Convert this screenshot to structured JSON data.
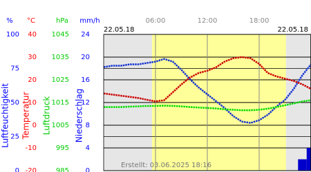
{
  "chart_data": {
    "type": "line",
    "date_left": "22.05.18",
    "date_right": "22.05.18",
    "footer": "Erstellt: 03.06.2025 18:16",
    "xlim": [
      0,
      24
    ],
    "xticks": [
      {
        "value": 6,
        "label": "06:00"
      },
      {
        "value": 12,
        "label": "12:00"
      },
      {
        "value": 18,
        "label": "18:00"
      }
    ],
    "daylight": [
      5.6,
      21.1
    ],
    "x": [
      0,
      1,
      2,
      3,
      4,
      5,
      6,
      7,
      8,
      9,
      10,
      11,
      12,
      13,
      14,
      15,
      16,
      17,
      18,
      19,
      20,
      21,
      22,
      23,
      24
    ],
    "axes": [
      {
        "unit": "%",
        "label": "Luftfeuchtigkeit",
        "color": "#0000ff",
        "lim": [
          0,
          100
        ],
        "ticks": [
          0,
          25,
          50,
          75,
          100
        ]
      },
      {
        "unit": "°C",
        "label": "Temperatur",
        "color": "#ff0000",
        "lim": [
          -20,
          40
        ],
        "ticks": [
          -20,
          -10,
          0,
          10,
          20,
          30,
          40
        ]
      },
      {
        "unit": "hPa",
        "label": "Luftdruck",
        "color": "#00cc00",
        "lim": [
          985,
          1045
        ],
        "ticks": [
          985,
          995,
          1005,
          1015,
          1025,
          1035,
          1045
        ]
      },
      {
        "unit": "mm/h",
        "label": "Niederschlag",
        "color": "#0000ff",
        "lim": [
          0,
          24
        ],
        "ticks": [
          0,
          4,
          8,
          12,
          16,
          20,
          24
        ]
      }
    ],
    "series": [
      {
        "kind": "line",
        "axis": 0,
        "color": "#1030d0",
        "values": [
          76,
          77,
          77,
          78,
          78,
          79,
          80,
          82,
          80,
          74,
          67,
          61,
          56,
          51,
          46,
          40,
          36,
          35,
          37,
          41,
          47,
          52,
          60,
          70,
          78
        ]
      },
      {
        "kind": "line",
        "axis": 1,
        "color": "#cc0000",
        "values": [
          14,
          13.5,
          13,
          12.5,
          12,
          11.2,
          10.5,
          11,
          14.5,
          18,
          21,
          23,
          24,
          25.5,
          28,
          29.5,
          30,
          29.5,
          27,
          23,
          21.5,
          20.5,
          19.5,
          18,
          16
        ]
      },
      {
        "kind": "line",
        "axis": 2,
        "color": "#00dd00",
        "values": [
          1013,
          1013,
          1013,
          1013.2,
          1013.3,
          1013.5,
          1013.5,
          1013.6,
          1013.5,
          1013.3,
          1013,
          1012.8,
          1012.6,
          1012.4,
          1012,
          1011.8,
          1011.6,
          1011.6,
          1011.8,
          1012.3,
          1013,
          1013.8,
          1014.6,
          1015.5,
          1016
        ]
      },
      {
        "kind": "bar",
        "axis": 3,
        "color": "#0000cc",
        "values": [
          0,
          0,
          0,
          0,
          0,
          0,
          0,
          0,
          0,
          0,
          0,
          0,
          0,
          0,
          0,
          0,
          0,
          0,
          0,
          0,
          0,
          0,
          0,
          2,
          4
        ]
      }
    ]
  }
}
